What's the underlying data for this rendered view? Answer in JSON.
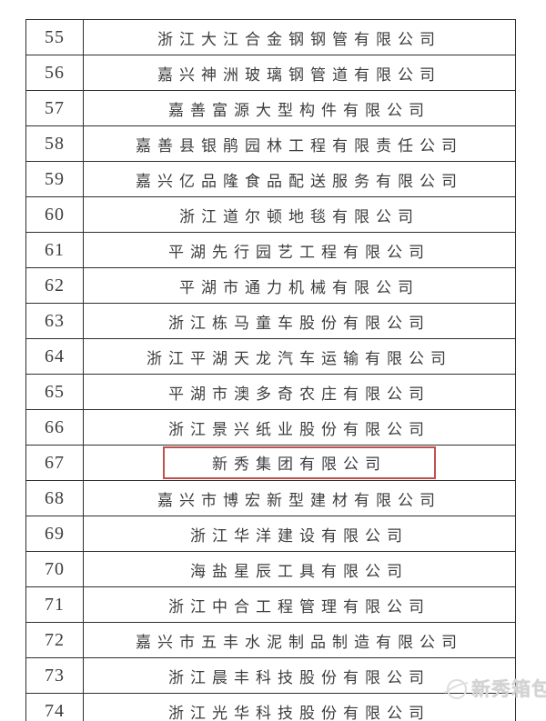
{
  "table": {
    "highlight_row_no": "67",
    "highlight_color": "#c0524e",
    "rows": [
      {
        "no": "55",
        "name": "浙江大江合金钢钢管有限公司"
      },
      {
        "no": "56",
        "name": "嘉兴神洲玻璃钢管道有限公司"
      },
      {
        "no": "57",
        "name": "嘉善富源大型构件有限公司"
      },
      {
        "no": "58",
        "name": "嘉善县银鹃园林工程有限责任公司"
      },
      {
        "no": "59",
        "name": "嘉兴亿品隆食品配送服务有限公司"
      },
      {
        "no": "60",
        "name": "浙江道尔顿地毯有限公司"
      },
      {
        "no": "61",
        "name": "平湖先行园艺工程有限公司"
      },
      {
        "no": "62",
        "name": "平湖市通力机械有限公司"
      },
      {
        "no": "63",
        "name": "浙江栋马童车股份有限公司"
      },
      {
        "no": "64",
        "name": "浙江平湖天龙汽车运输有限公司"
      },
      {
        "no": "65",
        "name": "平湖市澳多奇农庄有限公司"
      },
      {
        "no": "66",
        "name": "浙江景兴纸业股份有限公司"
      },
      {
        "no": "67",
        "name": "新秀集团有限公司"
      },
      {
        "no": "68",
        "name": "嘉兴市博宏新型建材有限公司"
      },
      {
        "no": "69",
        "name": "浙江华洋建设有限公司"
      },
      {
        "no": "70",
        "name": "海盐星辰工具有限公司"
      },
      {
        "no": "71",
        "name": "浙江中合工程管理有限公司"
      },
      {
        "no": "72",
        "name": "嘉兴市五丰水泥制品制造有限公司"
      },
      {
        "no": "73",
        "name": "浙江晨丰科技股份有限公司"
      },
      {
        "no": "74",
        "name": "浙江光华科技股份有限公司"
      }
    ]
  },
  "watermark": {
    "text": "新秀箱包",
    "icon": "sphere-logo-icon",
    "color": "#d3d3d3"
  },
  "colors": {
    "border": "#2e2e2e",
    "text": "#3d3d3d",
    "background": "#ffffff"
  }
}
